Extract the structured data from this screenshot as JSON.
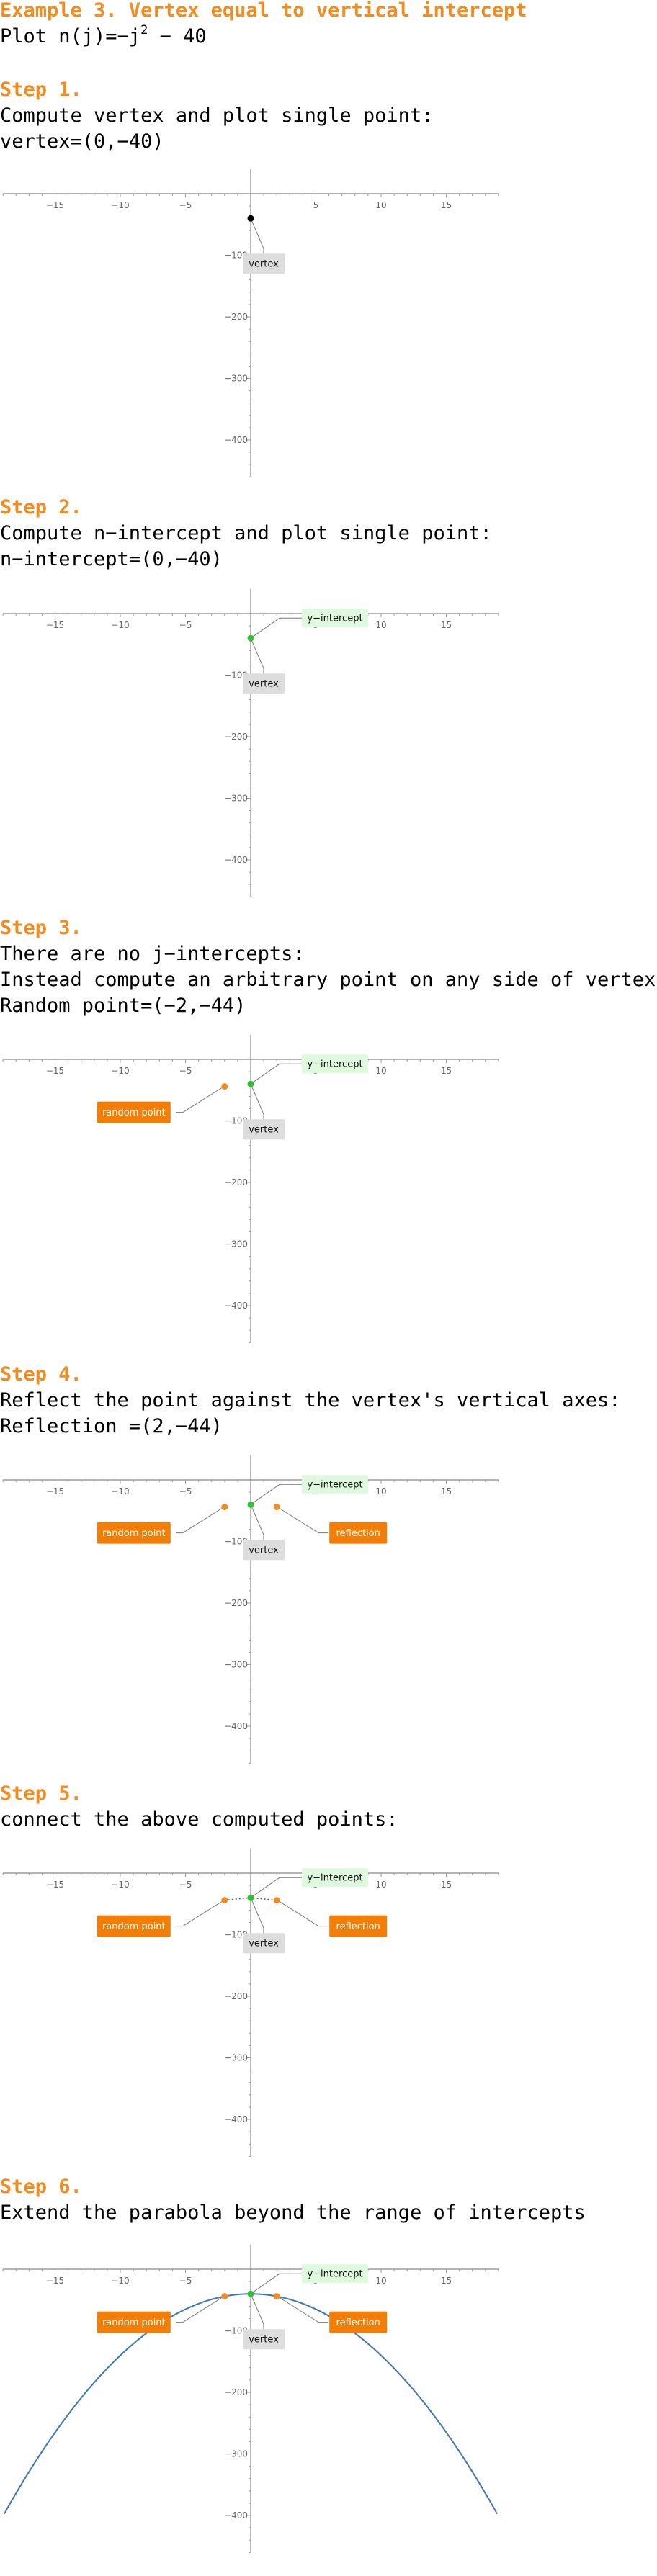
{
  "page": {
    "title": "Example 3. Vertex equal to vertical intercept",
    "intro_text": "Plot n(j)=−j² − 40",
    "intro_prefix": "Plot n(j)=−j",
    "intro_exp": "2",
    "intro_suffix": " − 40"
  },
  "steps": [
    {
      "title": "Step 1.",
      "lines": [
        "Compute vertex and plot single point:",
        "vertex=(0,−40)"
      ]
    },
    {
      "title": "Step 2.",
      "lines": [
        "Compute n−intercept and plot single point:",
        "n−intercept=(0,−40)"
      ]
    },
    {
      "title": "Step 3.",
      "lines": [
        "There are no j−intercepts:",
        "Instead compute an arbitrary point on any side of vertex:",
        "Random point=(−2,−44)"
      ]
    },
    {
      "title": "Step 4.",
      "lines": [
        "Reflect the point against the vertex's vertical axes:",
        "Reflection =(2,−44)"
      ]
    },
    {
      "title": "Step 5.",
      "lines": [
        "connect the above computed points:"
      ]
    },
    {
      "title": "Step 6.",
      "lines": [
        "Extend the parabola beyond the range of intercepts"
      ]
    }
  ],
  "labels": {
    "vertex": "vertex",
    "y_intercept": "y−intercept",
    "random_point": "random point",
    "reflection": "reflection"
  },
  "colors": {
    "title": "#F28C1F",
    "vertex_point": "#000000",
    "intercept_point": "#2FC132",
    "side_point": "#F28C1F",
    "curve": "#3F76B5",
    "vertex_label_bg": "#DDDDDD",
    "intercept_label_bg": "#DFF9DF",
    "orange_label_bg": "#F27D07"
  },
  "chart_data": [
    {
      "type": "scatter",
      "step": 1,
      "xlim": [
        -19,
        19
      ],
      "ylim": [
        -460,
        40
      ],
      "xticks": [
        -15,
        -10,
        -5,
        5,
        10,
        15
      ],
      "yticks": [
        -100,
        -200,
        -300,
        -400
      ],
      "points": [
        {
          "name": "vertex",
          "x": 0,
          "y": -40
        }
      ]
    },
    {
      "type": "scatter",
      "step": 2,
      "xlim": [
        -19,
        19
      ],
      "ylim": [
        -460,
        40
      ],
      "xticks": [
        -15,
        -10,
        -5,
        5,
        10,
        15
      ],
      "yticks": [
        -100,
        -200,
        -300,
        -400
      ],
      "points": [
        {
          "name": "vertex",
          "x": 0,
          "y": -40
        },
        {
          "name": "y−intercept",
          "x": 0,
          "y": -40
        }
      ]
    },
    {
      "type": "scatter",
      "step": 3,
      "xlim": [
        -19,
        19
      ],
      "ylim": [
        -460,
        40
      ],
      "xticks": [
        -15,
        -10,
        -5,
        5,
        10,
        15
      ],
      "yticks": [
        -100,
        -200,
        -300,
        -400
      ],
      "points": [
        {
          "name": "vertex",
          "x": 0,
          "y": -40
        },
        {
          "name": "y−intercept",
          "x": 0,
          "y": -40
        },
        {
          "name": "random point",
          "x": -2,
          "y": -44
        }
      ]
    },
    {
      "type": "scatter",
      "step": 4,
      "xlim": [
        -19,
        19
      ],
      "ylim": [
        -460,
        40
      ],
      "xticks": [
        -15,
        -10,
        -5,
        5,
        10,
        15
      ],
      "yticks": [
        -100,
        -200,
        -300,
        -400
      ],
      "points": [
        {
          "name": "vertex",
          "x": 0,
          "y": -40
        },
        {
          "name": "y−intercept",
          "x": 0,
          "y": -40
        },
        {
          "name": "random point",
          "x": -2,
          "y": -44
        },
        {
          "name": "reflection",
          "x": 2,
          "y": -44
        }
      ]
    },
    {
      "type": "line",
      "step": 5,
      "xlim": [
        -19,
        19
      ],
      "ylim": [
        -460,
        40
      ],
      "xticks": [
        -15,
        -10,
        -5,
        5,
        10,
        15
      ],
      "yticks": [
        -100,
        -200,
        -300,
        -400
      ],
      "points": [
        {
          "name": "vertex",
          "x": 0,
          "y": -40
        },
        {
          "name": "y−intercept",
          "x": 0,
          "y": -40
        },
        {
          "name": "random point",
          "x": -2,
          "y": -44
        },
        {
          "name": "reflection",
          "x": 2,
          "y": -44
        }
      ],
      "connect": "dotted"
    },
    {
      "type": "line",
      "step": 6,
      "xlim": [
        -19,
        19
      ],
      "ylim": [
        -460,
        40
      ],
      "xticks": [
        -15,
        -10,
        -5,
        5,
        10,
        15
      ],
      "yticks": [
        -100,
        -200,
        -300,
        -400
      ],
      "points": [
        {
          "name": "vertex",
          "x": 0,
          "y": -40
        },
        {
          "name": "y−intercept",
          "x": 0,
          "y": -40
        },
        {
          "name": "random point",
          "x": -2,
          "y": -44
        },
        {
          "name": "reflection",
          "x": 2,
          "y": -44
        }
      ],
      "curve": {
        "function": "-j^2-40",
        "x_range": [
          -18.9,
          18.9
        ]
      }
    }
  ]
}
